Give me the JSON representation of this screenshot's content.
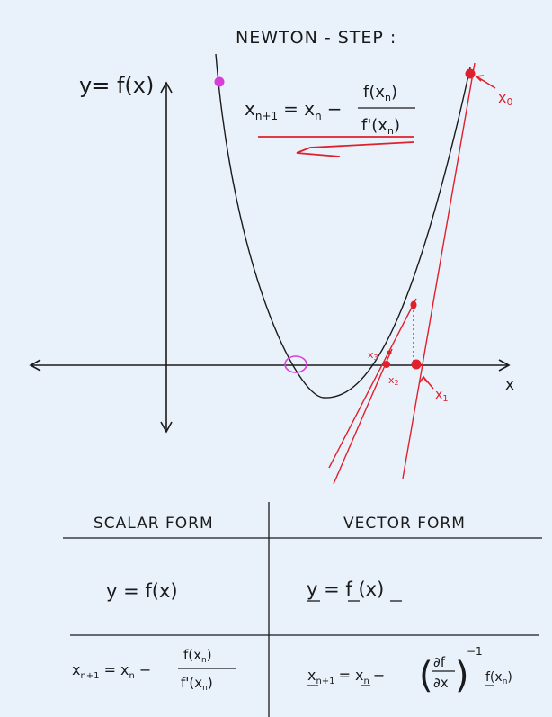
{
  "title": "NEWTON - STEP :",
  "axes": {
    "y_label": "y= f(x)",
    "x_label": "x"
  },
  "update_rule": {
    "lhs": "x",
    "lhs_sub": "n+1",
    "eq": "= x",
    "eq_sub": "n",
    "minus": "−",
    "numerator": "f(x",
    "numerator_sub": "n",
    "numerator_close": ")",
    "denominator": "f'(x",
    "denominator_sub": "n",
    "denominator_close": ")"
  },
  "iterates": {
    "x0": "x",
    "x0_sub": "0",
    "x1": "x",
    "x1_sub": "1",
    "x2": "x",
    "x2_sub": "2",
    "x3": "x",
    "x3_sub": "3"
  },
  "colors": {
    "ink": "#1a1a1a",
    "red": "#e0202a",
    "magenta": "#d83fd8",
    "background": "#e9f2fb"
  },
  "table": {
    "headers": {
      "scalar": "SCALAR FORM",
      "vector": "VECTOR FORM"
    },
    "row1": {
      "scalar": "y = f(x)",
      "vector": "y = f (x)"
    },
    "row2": {
      "scalar_lhs": "x",
      "scalar_lhs_sub": "n+1",
      "scalar_eq": "= x",
      "scalar_eq_sub": "n",
      "scalar_minus": "−",
      "scalar_num": "f(x",
      "scalar_num_sub": "n",
      "scalar_num_close": ")",
      "scalar_den": "f'(x",
      "scalar_den_sub": "n",
      "scalar_den_close": ")",
      "vector_lhs": "x",
      "vector_lhs_sub": "n+1",
      "vector_eq": "= x",
      "vector_eq_sub": "n",
      "vector_minus": "−",
      "vector_jac_num": "∂f",
      "vector_jac_den": "∂x",
      "vector_exp": "−1",
      "vector_f": "f(x",
      "vector_f_sub": "n",
      "vector_f_close": ")"
    }
  }
}
